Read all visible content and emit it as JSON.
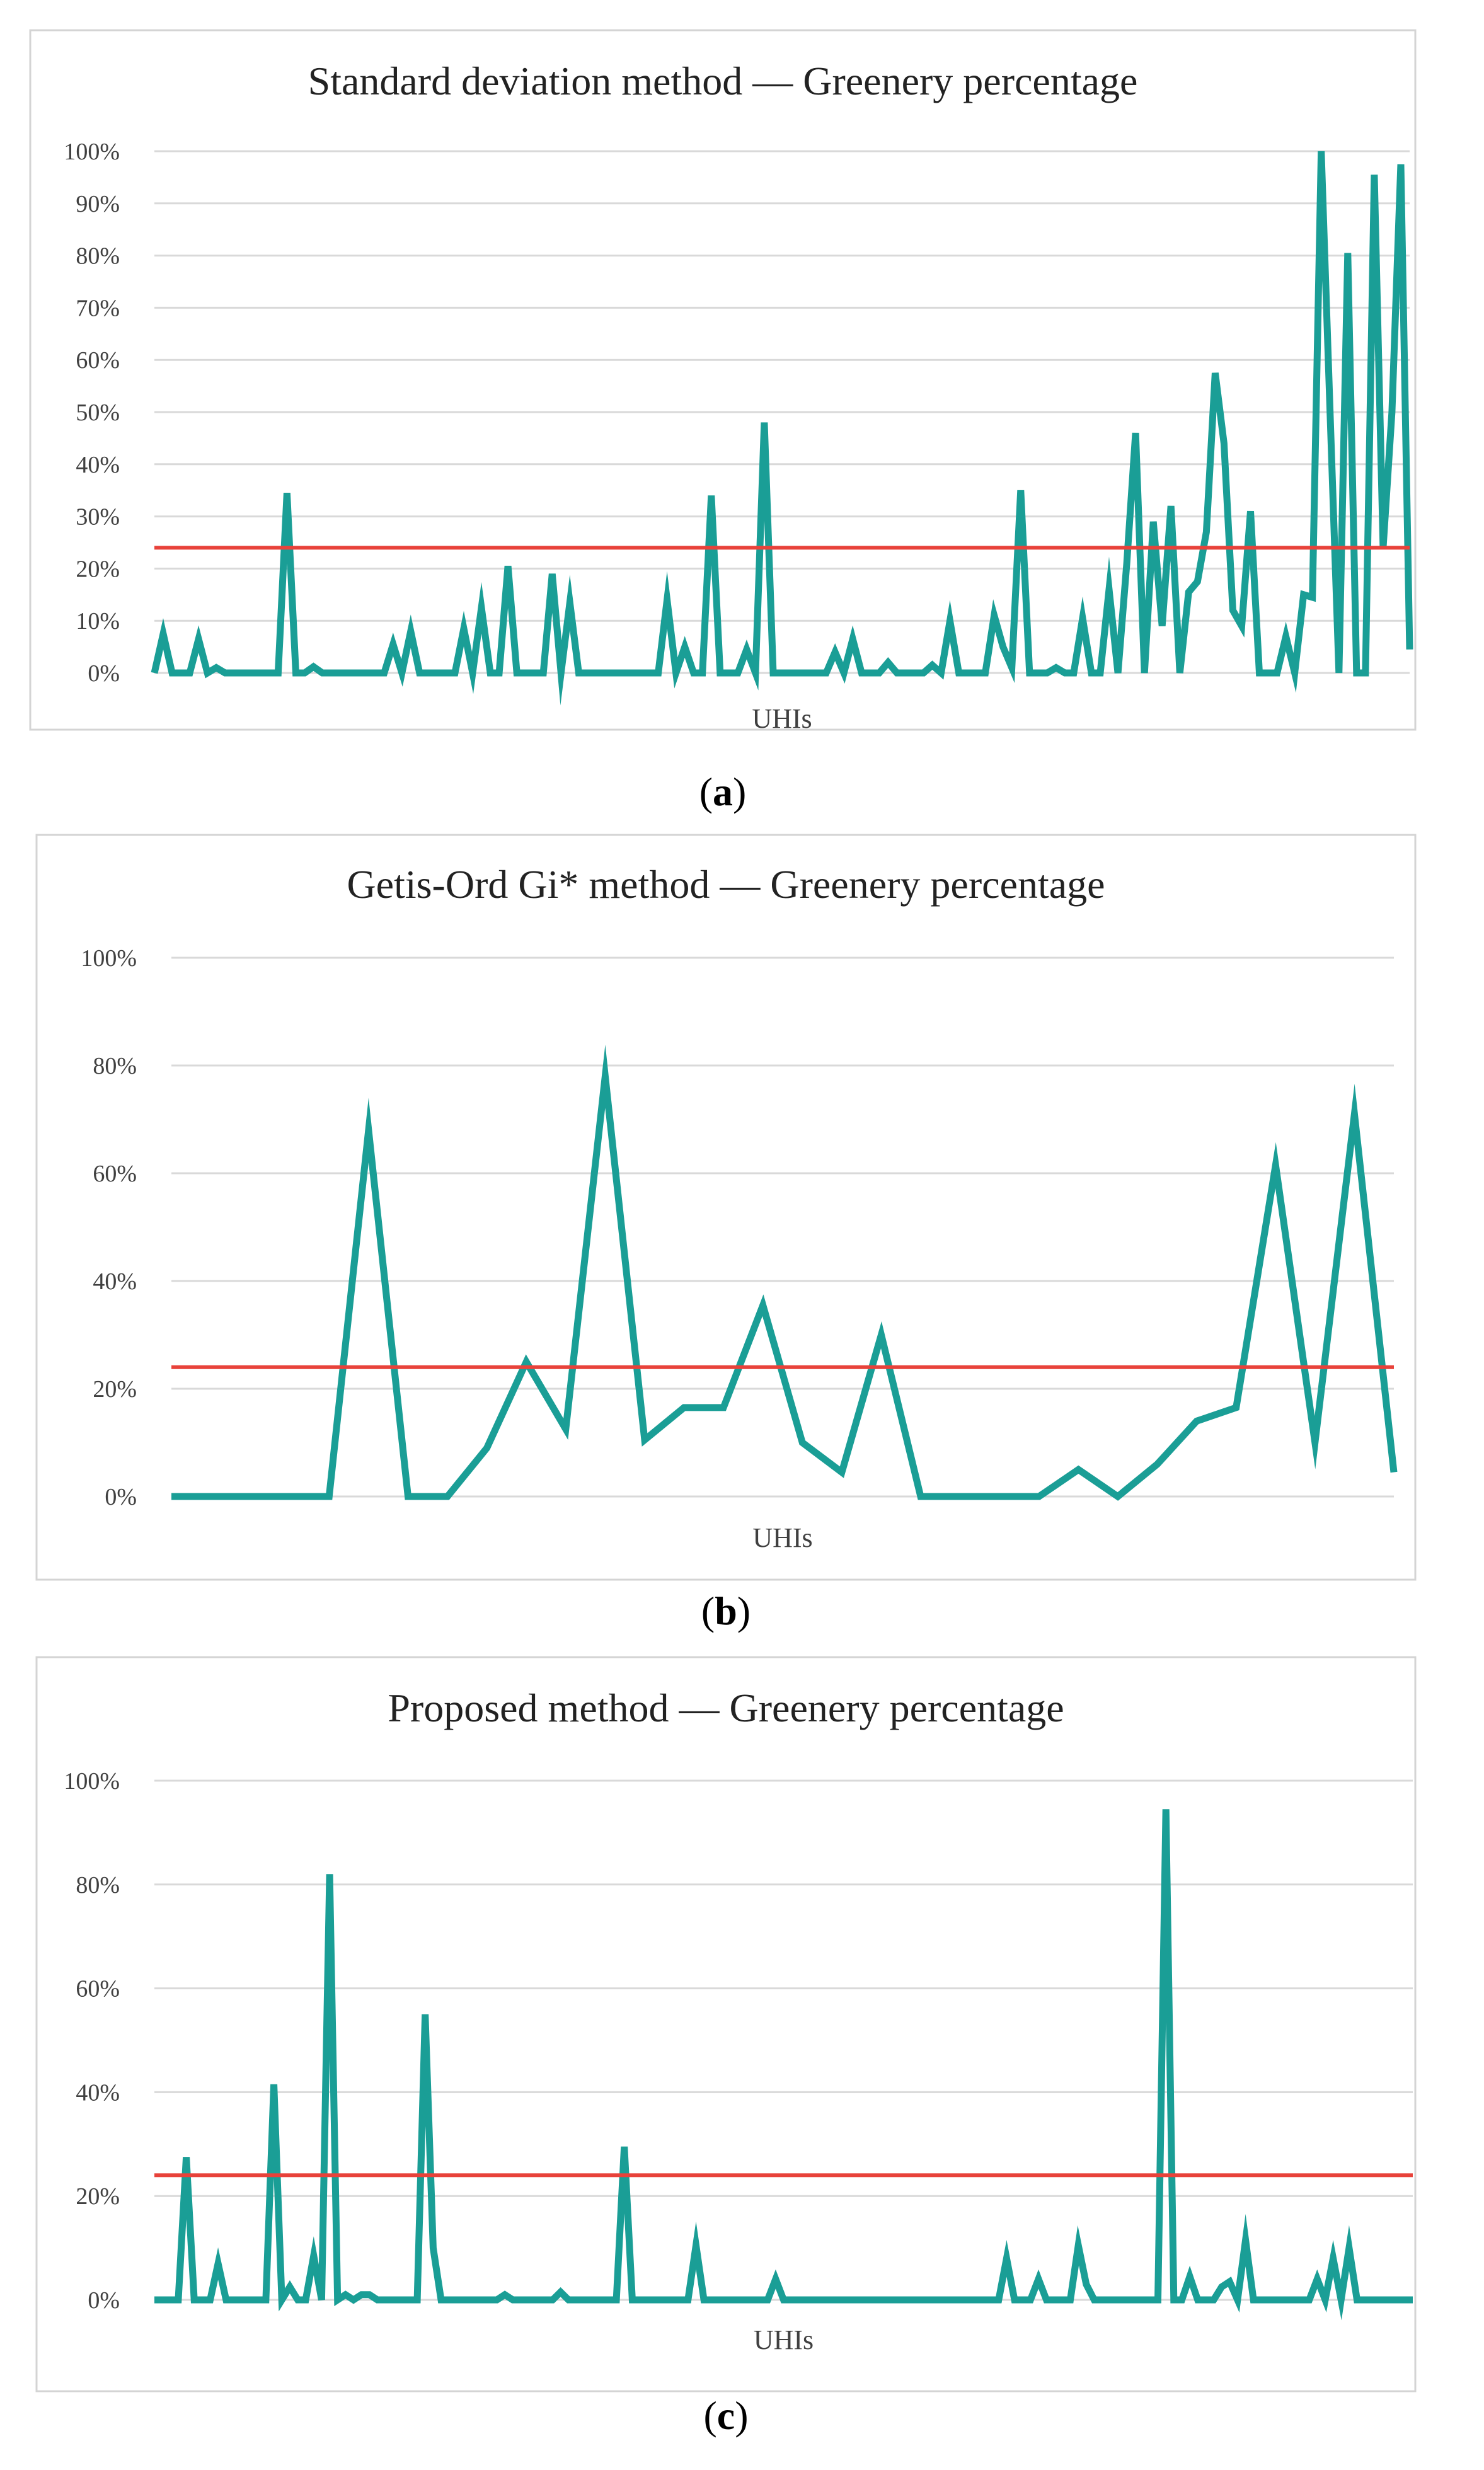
{
  "chart_data": [
    {
      "type": "line",
      "title": "Standard deviation method — Greenery percentage",
      "xlabel": "UHIs",
      "ylabel": "",
      "ylim": [
        0,
        100
      ],
      "yticks": [
        "0%",
        "10%",
        "20%",
        "30%",
        "40%",
        "50%",
        "60%",
        "70%",
        "80%",
        "90%",
        "100%"
      ],
      "panel_label": "(a)",
      "grid": true,
      "colors": {
        "line": "#1a9e96",
        "threshold": "#e8423a"
      },
      "threshold": 24,
      "series": [
        {
          "name": "Greenery percentage",
          "values": [
            0,
            7.5,
            0,
            0,
            0,
            6.5,
            0,
            1,
            0,
            0,
            0,
            0,
            0,
            0,
            0,
            34.5,
            0,
            0,
            1.2,
            0,
            0,
            0,
            0,
            0,
            0,
            0,
            0,
            5.5,
            0,
            8,
            0,
            0,
            0,
            0,
            0,
            8.5,
            0,
            12.5,
            0,
            0,
            20.5,
            0,
            0,
            0,
            0,
            19,
            0,
            13.5,
            0,
            0,
            0,
            0,
            0,
            0,
            0,
            0,
            0,
            0,
            14,
            0,
            5,
            0,
            0,
            34,
            0,
            0,
            0,
            4.5,
            0,
            48,
            0,
            0,
            0,
            0,
            0,
            0,
            0,
            4,
            0,
            6.5,
            0,
            0,
            0,
            2,
            0,
            0,
            0,
            0,
            1.5,
            0,
            10,
            0,
            0,
            0,
            0,
            11,
            5,
            1,
            35,
            0,
            0,
            0,
            1,
            0,
            0,
            10.5,
            0,
            0,
            16,
            0,
            21,
            46,
            0,
            29,
            9,
            32,
            0,
            15.5,
            17.5,
            27,
            57.5,
            44,
            12,
            9,
            31,
            0,
            0,
            0,
            7,
            0,
            15,
            14.5,
            100,
            50,
            0,
            80.5,
            0,
            0,
            95.5,
            24,
            50,
            97.5,
            4.5
          ]
        }
      ]
    },
    {
      "type": "line",
      "title": "Getis-Ord Gi* method — Greenery percentage",
      "xlabel": "UHIs",
      "ylabel": "",
      "ylim": [
        0,
        100
      ],
      "yticks": [
        "0%",
        "20%",
        "40%",
        "60%",
        "80%",
        "100%"
      ],
      "panel_label": "(b)",
      "grid": true,
      "colors": {
        "line": "#1a9e96",
        "threshold": "#e8423a"
      },
      "threshold": 24,
      "series": [
        {
          "name": "Greenery percentage",
          "values": [
            0,
            0,
            0,
            0,
            0,
            68,
            0,
            0,
            9,
            25,
            12.5,
            78,
            10.5,
            16.5,
            16.5,
            35.5,
            10,
            4.5,
            30,
            0,
            0,
            0,
            0,
            5,
            0,
            6,
            14,
            16.5,
            61.5,
            10,
            71,
            4.5
          ]
        }
      ]
    },
    {
      "type": "line",
      "title": "Proposed method — Greenery percentage",
      "xlabel": "UHIs",
      "ylabel": "",
      "ylim": [
        0,
        100
      ],
      "yticks": [
        "0%",
        "20%",
        "40%",
        "60%",
        "80%",
        "100%"
      ],
      "panel_label": "(c)",
      "grid": true,
      "colors": {
        "line": "#1a9e96",
        "threshold": "#e8423a"
      },
      "threshold": 24,
      "series": [
        {
          "name": "Greenery percentage",
          "values": [
            0,
            0,
            0,
            0,
            27.5,
            0,
            0,
            0,
            7,
            0,
            0,
            0,
            0,
            0,
            0,
            41.5,
            0,
            2.5,
            0,
            0,
            8.5,
            0,
            82,
            0,
            1,
            0,
            1,
            1,
            0,
            0,
            0,
            0,
            0,
            0,
            55,
            10,
            0,
            0,
            0,
            0,
            0,
            0,
            0,
            0,
            1,
            0,
            0,
            0,
            0,
            0,
            0,
            1.5,
            0,
            0,
            0,
            0,
            0,
            0,
            0,
            29.5,
            0,
            0,
            0,
            0,
            0,
            0,
            0,
            0,
            10.5,
            0,
            0,
            0,
            0,
            0,
            0,
            0,
            0,
            0,
            4,
            0,
            0,
            0,
            0,
            0,
            0,
            0,
            0,
            0,
            0,
            0,
            0,
            0,
            0,
            0,
            0,
            0,
            0,
            0,
            0,
            0,
            0,
            0,
            0,
            0,
            0,
            0,
            0,
            8,
            0,
            0,
            0,
            4,
            0,
            0,
            0,
            0,
            10.5,
            3,
            0,
            0,
            0,
            0,
            0,
            0,
            0,
            0,
            0,
            94.5,
            0,
            0,
            4.5,
            0,
            0,
            0,
            2.5,
            3.5,
            0,
            11.5,
            0,
            0,
            0,
            0,
            0,
            0,
            0,
            0,
            4,
            0,
            8,
            0,
            10,
            0,
            0,
            0,
            0,
            0,
            0,
            0,
            0
          ]
        }
      ]
    }
  ]
}
